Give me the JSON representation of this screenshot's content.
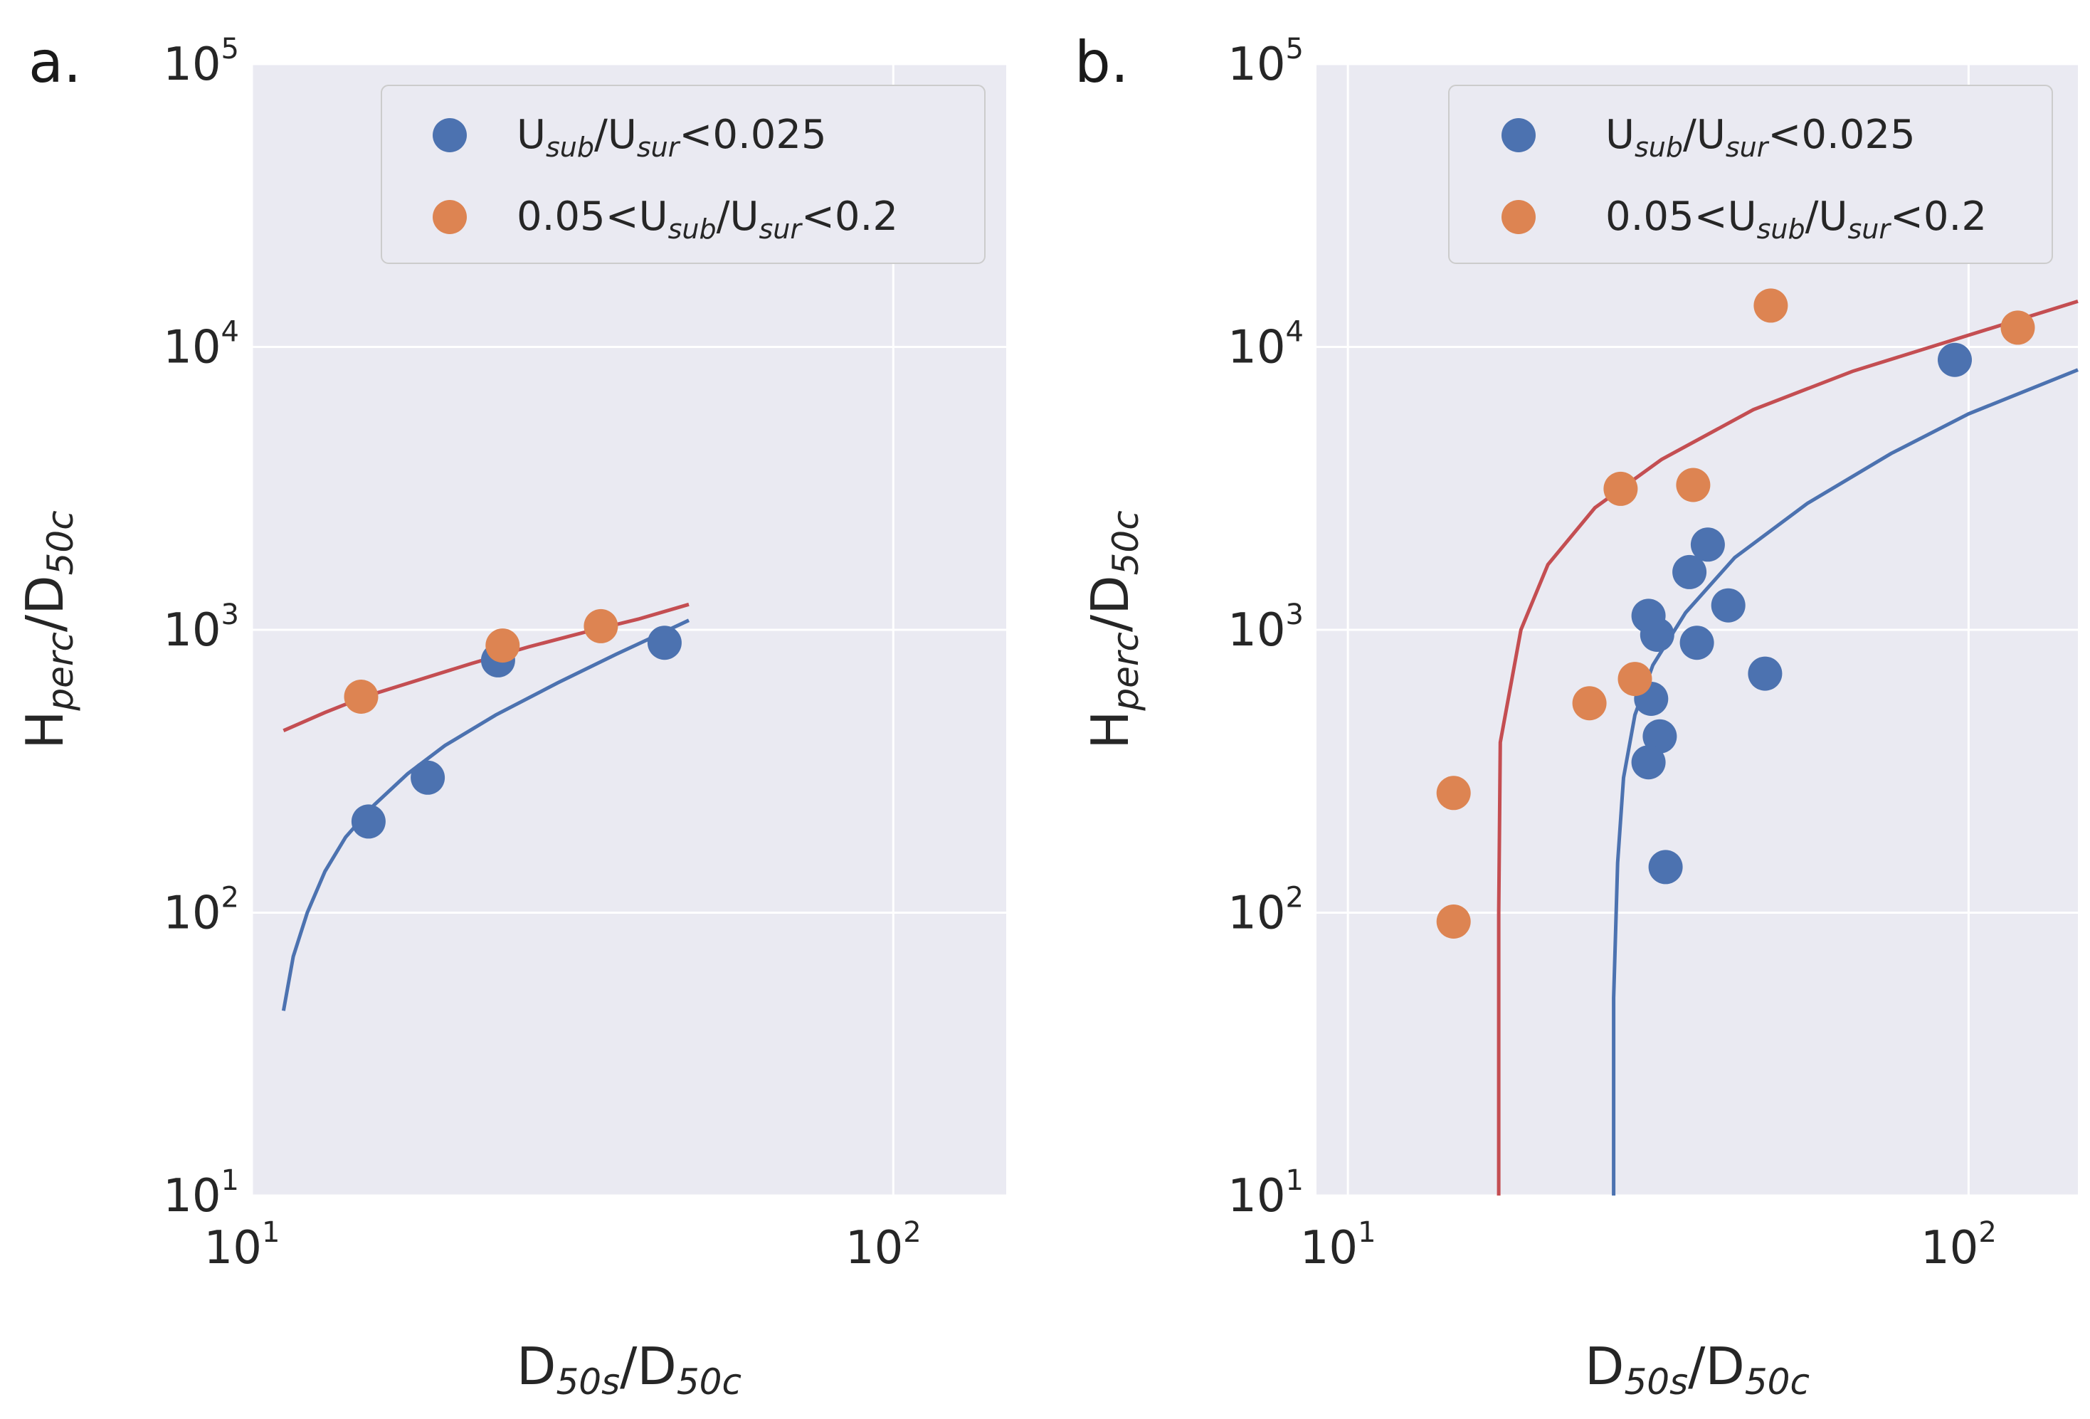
{
  "chart_data": [
    {
      "panel_label": "a.",
      "type": "scatter",
      "xscale": "log",
      "yscale": "log",
      "xlim": [
        10,
        150
      ],
      "ylim": [
        10,
        100000
      ],
      "xticks": [
        10,
        100
      ],
      "yticks": [
        10,
        100,
        1000,
        10000,
        100000
      ],
      "xlabel": {
        "base": "D",
        "sub": "50s",
        "mid": "/D",
        "sub2": "50c"
      },
      "ylabel": {
        "base": "H",
        "sub": "perc",
        "mid": "/D",
        "sub2": "50c"
      },
      "grid": true,
      "legend_position": "upper-right",
      "series": [
        {
          "name": "Usub/Usur<0.025",
          "legend": {
            "pre": "U",
            "sub1": "sub",
            "mid": "/U",
            "sub2": "sur",
            "post": "<0.025"
          },
          "color": "#4c72b0",
          "points": [
            [
              15.2,
              210
            ],
            [
              18.8,
              300
            ],
            [
              24.2,
              780
            ],
            [
              44.0,
              900
            ]
          ]
        },
        {
          "name": "0.05<Usub/Usur<0.2",
          "legend": {
            "pre": "0.05<U",
            "sub1": "sub",
            "mid": "/U",
            "sub2": "sur",
            "post": "<0.2"
          },
          "color": "#dd8452",
          "points": [
            [
              14.8,
              580
            ],
            [
              24.6,
              880
            ],
            [
              35.0,
              1030
            ]
          ]
        }
      ],
      "fit_lines": [
        {
          "series": "Usub/Usur<0.025",
          "color": "#4c72b0",
          "points": [
            [
              11.2,
              45
            ],
            [
              11.6,
              70
            ],
            [
              12.2,
              100
            ],
            [
              13.0,
              140
            ],
            [
              14.0,
              185
            ],
            [
              15.5,
              240
            ],
            [
              17.5,
              310
            ],
            [
              20.0,
              390
            ],
            [
              24.0,
              500
            ],
            [
              30.0,
              650
            ],
            [
              37.0,
              820
            ],
            [
              48.0,
              1080
            ]
          ]
        },
        {
          "series": "0.05<Usub/Usur<0.2",
          "color": "#c44e52",
          "points": [
            [
              11.2,
              440
            ],
            [
              13.0,
              510
            ],
            [
              15.0,
              580
            ],
            [
              18.0,
              660
            ],
            [
              22.0,
              760
            ],
            [
              27.0,
              870
            ],
            [
              33.0,
              980
            ],
            [
              40.0,
              1090
            ],
            [
              48.0,
              1230
            ]
          ]
        }
      ]
    },
    {
      "panel_label": "b.",
      "type": "scatter",
      "xscale": "log",
      "yscale": "log",
      "xlim": [
        8.9,
        150
      ],
      "ylim": [
        10,
        100000
      ],
      "xticks": [
        10,
        100
      ],
      "yticks": [
        10,
        100,
        1000,
        10000,
        100000
      ],
      "xlabel": {
        "base": "D",
        "sub": "50s",
        "mid": "/D",
        "sub2": "50c"
      },
      "ylabel": {
        "base": "H",
        "sub": "perc",
        "mid": "/D",
        "sub2": "50c"
      },
      "grid": true,
      "legend_position": "upper-right",
      "series": [
        {
          "name": "Usub/Usur<0.025",
          "legend": {
            "pre": "U",
            "sub1": "sub",
            "mid": "/U",
            "sub2": "sur",
            "post": "<0.025"
          },
          "color": "#4c72b0",
          "points": [
            [
              30.5,
              1120
            ],
            [
              31.5,
              960
            ],
            [
              30.8,
              570
            ],
            [
              31.8,
              420
            ],
            [
              30.5,
              340
            ],
            [
              32.5,
              145
            ],
            [
              35.5,
              1600
            ],
            [
              38.0,
              2000
            ],
            [
              41.0,
              1220
            ],
            [
              36.5,
              900
            ],
            [
              47.0,
              700
            ],
            [
              95.0,
              9000
            ]
          ]
        },
        {
          "name": "0.05<Usub/Usur<0.2",
          "legend": {
            "pre": "0.05<U",
            "sub1": "sub",
            "mid": "/U",
            "sub2": "sur",
            "post": "<0.2"
          },
          "color": "#dd8452",
          "points": [
            [
              14.8,
              265
            ],
            [
              14.8,
              93
            ],
            [
              24.5,
              550
            ],
            [
              29.0,
              670
            ],
            [
              27.5,
              3150
            ],
            [
              36.0,
              3250
            ],
            [
              48.0,
              14000
            ],
            [
              120.0,
              11700
            ]
          ]
        }
      ],
      "fit_lines": [
        {
          "series": "Usub/Usur<0.025",
          "color": "#4c72b0",
          "points": [
            [
              26.8,
              10
            ],
            [
              26.8,
              50
            ],
            [
              27.2,
              150
            ],
            [
              27.8,
              300
            ],
            [
              29.0,
              500
            ],
            [
              31.0,
              750
            ],
            [
              35.0,
              1150
            ],
            [
              42.0,
              1800
            ],
            [
              55.0,
              2800
            ],
            [
              75.0,
              4200
            ],
            [
              100.0,
              5800
            ],
            [
              150.0,
              8300
            ]
          ]
        },
        {
          "series": "0.05<Usub/Usur<0.2",
          "color": "#c44e52",
          "points": [
            [
              17.5,
              10
            ],
            [
              17.5,
              100
            ],
            [
              17.6,
              400
            ],
            [
              19.0,
              1000
            ],
            [
              21.0,
              1700
            ],
            [
              25.0,
              2700
            ],
            [
              32.0,
              4000
            ],
            [
              45.0,
              6000
            ],
            [
              65.0,
              8200
            ],
            [
              100.0,
              11000
            ],
            [
              150.0,
              14500
            ]
          ]
        }
      ]
    }
  ]
}
